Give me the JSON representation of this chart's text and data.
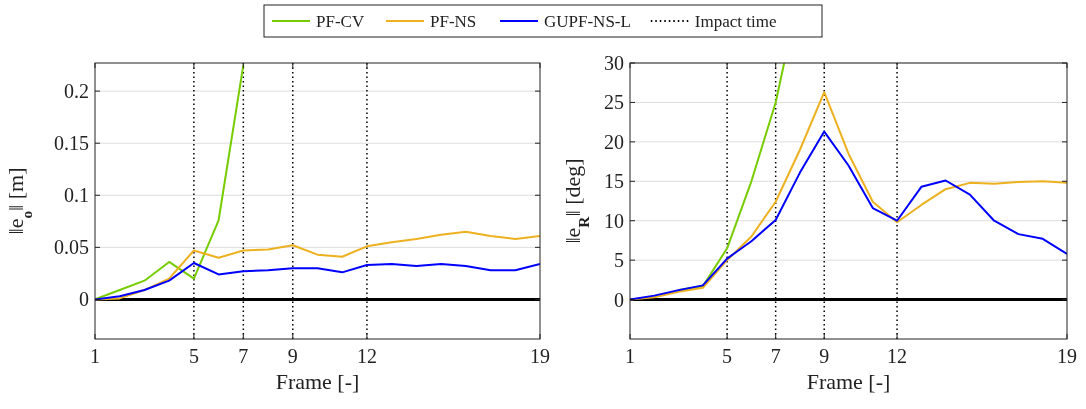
{
  "chart_data": [
    {
      "type": "line",
      "xlabel": "Frame [-]",
      "ylabel": "‖e$_{o}$‖ [m]",
      "xlim": [
        1,
        19
      ],
      "xticks": [
        1,
        5,
        7,
        9,
        12,
        19
      ],
      "ylim": [
        -0.038,
        0.227
      ],
      "yticks": [
        0,
        0.05,
        0.1,
        0.15,
        0.2
      ],
      "grid": "y",
      "legend": "top",
      "line_style": "solid",
      "x": [
        1,
        2,
        3,
        4,
        5,
        6,
        7,
        8,
        9,
        10,
        11,
        12,
        13,
        14,
        15,
        16,
        17,
        18,
        19
      ],
      "series": [
        {
          "name": "PF-CV",
          "color": "#77cc00",
          "x": [
            1,
            2,
            3,
            4,
            5,
            6,
            7
          ],
          "values": [
            0,
            0.009,
            0.018,
            0.036,
            0.02,
            0.076,
            0.225
          ]
        },
        {
          "name": "PF-NS",
          "color": "#edb120",
          "values": [
            0,
            0.001,
            0.009,
            0.02,
            0.047,
            0.04,
            0.047,
            0.048,
            0.052,
            0.043,
            0.041,
            0.051,
            0.055,
            0.058,
            0.062,
            0.065,
            0.061,
            0.058,
            0.061
          ]
        },
        {
          "name": "GUPF-NS-L",
          "color": "#0000ff",
          "values": [
            0,
            0.003,
            0.009,
            0.018,
            0.035,
            0.024,
            0.027,
            0.028,
            0.03,
            0.03,
            0.026,
            0.033,
            0.034,
            0.032,
            0.034,
            0.032,
            0.028,
            0.028,
            0.034
          ]
        }
      ],
      "ref_lines": [
        {
          "axis": "y",
          "value": 0,
          "color": "#000000",
          "line_style": "solid"
        },
        {
          "axis": "x",
          "value": 5,
          "label": "Impact time",
          "color": "#000000",
          "line_style": "dotted"
        },
        {
          "axis": "x",
          "value": 7,
          "color": "#000000",
          "line_style": "dotted"
        },
        {
          "axis": "x",
          "value": 9,
          "color": "#000000",
          "line_style": "dotted"
        },
        {
          "axis": "x",
          "value": 12,
          "color": "#000000",
          "line_style": "dotted"
        }
      ]
    },
    {
      "type": "line",
      "xlabel": "Frame [-]",
      "ylabel": "‖e$_{R}$‖ [deg]",
      "xlim": [
        1,
        19
      ],
      "xticks": [
        1,
        5,
        7,
        9,
        12,
        19
      ],
      "ylim": [
        -5,
        30
      ],
      "yticks": [
        0,
        5,
        10,
        15,
        20,
        25,
        30
      ],
      "grid": "y",
      "line_style": "solid",
      "x": [
        1,
        2,
        3,
        4,
        5,
        6,
        7,
        8,
        9,
        10,
        11,
        12,
        13,
        14,
        15,
        16,
        17,
        18,
        19
      ],
      "series": [
        {
          "color": "#77cc00",
          "x": [
            3,
            4,
            5,
            6,
            7,
            7.35
          ],
          "values": [
            1.2,
            1.7,
            6.5,
            15,
            25,
            30
          ]
        },
        {
          "color": "#edb120",
          "values": [
            0,
            0.3,
            1,
            1.5,
            5,
            8,
            12.4,
            19,
            26.3,
            18.5,
            12.4,
            9.8,
            12,
            14,
            14.8,
            14.7,
            14.9,
            15,
            14.8
          ]
        },
        {
          "color": "#0000ff",
          "values": [
            0,
            0.5,
            1.2,
            1.8,
            5.2,
            7.4,
            10.1,
            16.1,
            21.3,
            17,
            11.6,
            10,
            14.3,
            15.1,
            13.3,
            10,
            8.3,
            7.7,
            5.8
          ]
        }
      ],
      "ref_lines": [
        {
          "axis": "y",
          "value": 0,
          "color": "#000000",
          "line_style": "solid"
        },
        {
          "axis": "x",
          "value": 5,
          "color": "#000000",
          "line_style": "dotted"
        },
        {
          "axis": "x",
          "value": 7,
          "color": "#000000",
          "line_style": "dotted"
        },
        {
          "axis": "x",
          "value": 9,
          "color": "#000000",
          "line_style": "dotted"
        },
        {
          "axis": "x",
          "value": 12,
          "color": "#000000",
          "line_style": "dotted"
        }
      ]
    }
  ]
}
